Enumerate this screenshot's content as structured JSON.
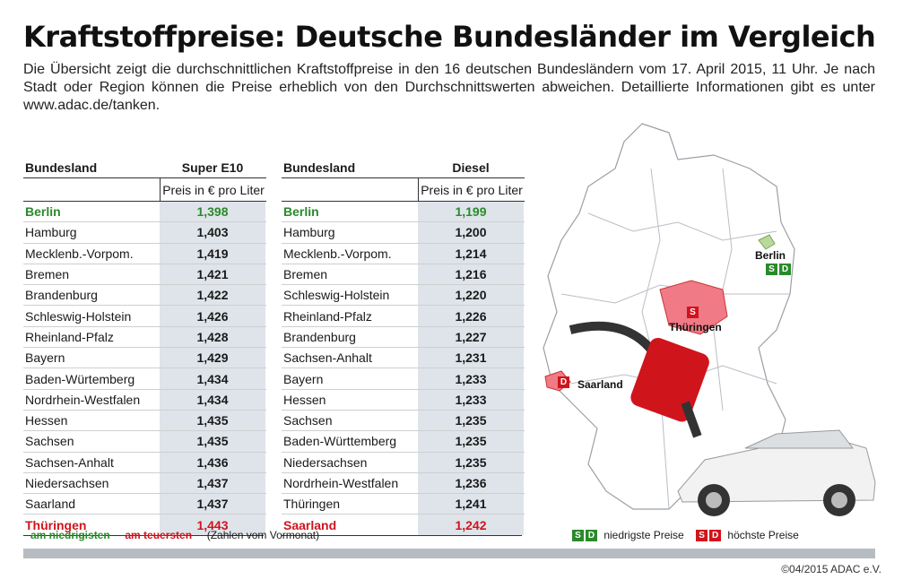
{
  "title": "Kraftstoffpreise: Deutsche Bundesländer im Vergleich",
  "intro": "Die Übersicht zeigt die durchschnittlichen Kraftstoffpreise in den 16 deutschen Bundesländern vom 17. April 2015, 11 Uhr. Je nach Stadt oder Region können die Preise erheblich von den Durchschnittswerten abweichen. Detaillierte Informationen gibt es unter www.adac.de/tanken.",
  "table_e10": {
    "col_land": "Bundesland",
    "col_price": "Super E10",
    "unit": "Preis in € pro Liter",
    "rows": [
      {
        "land": "Berlin",
        "price": "1,398"
      },
      {
        "land": "Hamburg",
        "price": "1,403"
      },
      {
        "land": "Mecklenb.-Vorpom.",
        "price": "1,419"
      },
      {
        "land": "Bremen",
        "price": "1,421"
      },
      {
        "land": "Brandenburg",
        "price": "1,422"
      },
      {
        "land": "Schleswig-Holstein",
        "price": "1,426"
      },
      {
        "land": "Rheinland-Pfalz",
        "price": "1,428"
      },
      {
        "land": "Bayern",
        "price": "1,429"
      },
      {
        "land": "Baden-Würtemberg",
        "price": "1,434"
      },
      {
        "land": "Nordrhein-Westfalen",
        "price": "1,434"
      },
      {
        "land": "Hessen",
        "price": "1,435"
      },
      {
        "land": "Sachsen",
        "price": "1,435"
      },
      {
        "land": "Sachsen-Anhalt",
        "price": "1,436"
      },
      {
        "land": "Niedersachsen",
        "price": "1,437"
      },
      {
        "land": "Saarland",
        "price": "1,437"
      },
      {
        "land": "Thüringen",
        "price": "1,443"
      }
    ]
  },
  "table_diesel": {
    "col_land": "Bundesland",
    "col_price": "Diesel",
    "unit": "Preis in € pro Liter",
    "rows": [
      {
        "land": "Berlin",
        "price": "1,199"
      },
      {
        "land": "Hamburg",
        "price": "1,200"
      },
      {
        "land": "Mecklenb.-Vorpom.",
        "price": "1,214"
      },
      {
        "land": "Bremen",
        "price": "1,216"
      },
      {
        "land": "Schleswig-Holstein",
        "price": "1,220"
      },
      {
        "land": "Rheinland-Pfalz",
        "price": "1,226"
      },
      {
        "land": "Brandenburg",
        "price": "1,227"
      },
      {
        "land": "Sachsen-Anhalt",
        "price": "1,231"
      },
      {
        "land": "Bayern",
        "price": "1,233"
      },
      {
        "land": "Hessen",
        "price": "1,233"
      },
      {
        "land": "Sachsen",
        "price": "1,235"
      },
      {
        "land": "Baden-Württemberg",
        "price": "1,235"
      },
      {
        "land": "Niedersachsen",
        "price": "1,235"
      },
      {
        "land": "Nordrhein-Westfalen",
        "price": "1,236"
      },
      {
        "land": "Thüringen",
        "price": "1,241"
      },
      {
        "land": "Saarland",
        "price": "1,242"
      }
    ]
  },
  "legend": {
    "lowest": "am niedrigisten",
    "highest": "am teuersten",
    "note": "(Zahlen vom Vormonat)",
    "sd_s": "S",
    "sd_d": "D",
    "low_text": "niedrigste Preise",
    "high_text": "höchste Preise"
  },
  "map": {
    "berlin": "Berlin",
    "thueringen": "Thüringen",
    "saarland": "Saarland",
    "s": "S",
    "d": "D"
  },
  "copyright": "©04/2015 ADAC e.V.",
  "colors": {
    "green": "#2a8a2a",
    "red": "#d0141c",
    "bar": "#b7bcc2",
    "cell": "#dfe4ea"
  }
}
